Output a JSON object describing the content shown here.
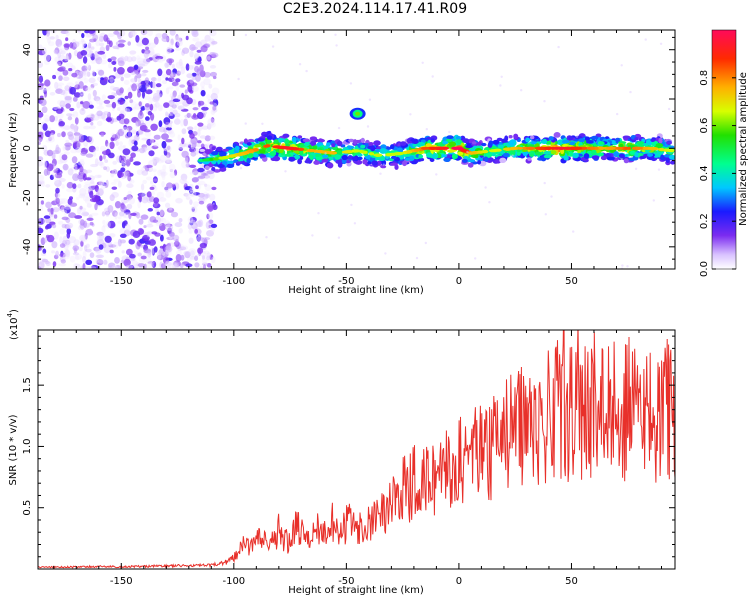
{
  "title": "C2E3.2024.114.17.41.R09",
  "colors": {
    "snr_line": "#e8302a",
    "spectrum_low": "#7b2cf0",
    "spectrum_mid": "#00d2ff",
    "spectrum_high": "#ff1010",
    "axis": "#000000"
  },
  "chart_data": [
    {
      "id": "spectrogram",
      "type": "heatmap",
      "title": "C2E3.2024.114.17.41.R09",
      "xlabel": "Height of straight line (km)",
      "ylabel": "Frequency (Hz)",
      "xlim": [
        -187,
        96
      ],
      "ylim": [
        -49,
        48
      ],
      "xticks": [
        -150,
        -100,
        -50,
        0,
        50
      ],
      "xtick_labels": [
        "-150",
        "-100",
        "-50",
        "0",
        "50"
      ],
      "yticks": [
        -40,
        -20,
        0,
        20,
        40
      ],
      "ytick_labels": [
        "-40",
        "-20",
        "0",
        "20",
        "40"
      ],
      "noise_region": {
        "x_from": -187,
        "x_to": -108,
        "description_level": "low amplitude scatter"
      },
      "signal_band": {
        "x": [
          -115,
          -105,
          -95,
          -85,
          -75,
          -65,
          -55,
          -45,
          -35,
          -25,
          -15,
          -5,
          0,
          5,
          15,
          25,
          35,
          45,
          55,
          65,
          75,
          85,
          95
        ],
        "center_hz": [
          -5,
          -4,
          -2,
          1,
          0,
          -1,
          -2,
          -1,
          -3,
          -2,
          0,
          0,
          0,
          -2,
          -1,
          0,
          0,
          0,
          0,
          0,
          0,
          0,
          -1
        ],
        "amplitude": [
          0.3,
          0.5,
          0.6,
          0.7,
          0.8,
          0.6,
          0.6,
          0.5,
          0.5,
          0.5,
          0.7,
          0.8,
          0.9,
          0.6,
          0.5,
          0.6,
          0.7,
          0.8,
          0.7,
          0.6,
          0.7,
          0.6,
          0.5
        ]
      },
      "isolated_spot": {
        "x": -45,
        "y": 14,
        "amplitude": 0.6
      },
      "colorbar": {
        "label": "Normalized spectral amplitude",
        "range": [
          0,
          1
        ],
        "ticks": [
          0.0,
          0.2,
          0.4,
          0.6,
          0.8
        ],
        "tick_labels": [
          "0.0",
          "0.2",
          "0.4",
          "0.6",
          "0.8"
        ]
      }
    },
    {
      "id": "snr",
      "type": "line",
      "xlabel": "Height of straight line (km)",
      "ylabel": "SNR (10 * v/v)",
      "scale_label": "(x10",
      "scale_exponent": "4",
      "scale_suffix": ")",
      "xlim": [
        -187,
        96
      ],
      "ylim": [
        0,
        19500
      ],
      "xticks": [
        -150,
        -100,
        -50,
        0,
        50
      ],
      "xtick_labels": [
        "-150",
        "-100",
        "-50",
        "0",
        "50"
      ],
      "yticks": [
        5000,
        10000,
        15000
      ],
      "ytick_labels": [
        "0.5",
        "1.0",
        "1.5"
      ],
      "series": [
        {
          "name": "SNR",
          "x": [
            -187,
            -180,
            -170,
            -160,
            -150,
            -140,
            -130,
            -120,
            -110,
            -104,
            -100,
            -96,
            -92,
            -88,
            -84,
            -80,
            -76,
            -72,
            -68,
            -64,
            -60,
            -56,
            -52,
            -48,
            -44,
            -40,
            -36,
            -32,
            -28,
            -24,
            -20,
            -16,
            -12,
            -8,
            -4,
            0,
            4,
            8,
            12,
            16,
            20,
            24,
            28,
            32,
            36,
            40,
            44,
            48,
            52,
            56,
            60,
            64,
            68,
            72,
            76,
            80,
            84,
            88,
            92,
            96
          ],
          "values": [
            150,
            160,
            170,
            200,
            180,
            220,
            250,
            280,
            300,
            550,
            900,
            2200,
            1600,
            2600,
            1800,
            3000,
            2200,
            3400,
            2400,
            3800,
            2600,
            4000,
            3000,
            4200,
            3300,
            3900,
            4600,
            5200,
            6000,
            6400,
            7000,
            7300,
            7200,
            8100,
            8000,
            8800,
            9000,
            9400,
            9200,
            10400,
            10800,
            11200,
            11600,
            12100,
            11800,
            12600,
            12900,
            12800,
            13200,
            13000,
            13400,
            13100,
            13600,
            12800,
            13300,
            12600,
            13000,
            12400,
            13100,
            12200
          ]
        }
      ]
    }
  ]
}
